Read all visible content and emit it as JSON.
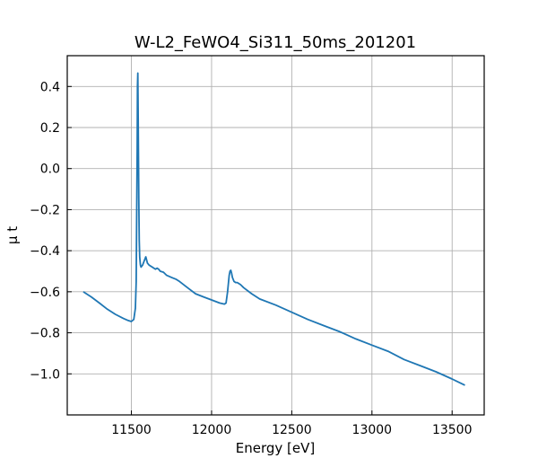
{
  "chart_data": {
    "type": "line",
    "title": "W-L2_FeWO4_Si311_50ms_201201",
    "xlabel": "Energy [eV]",
    "ylabel": "μ t",
    "xlim": [
      11100,
      13700
    ],
    "ylim": [
      -1.2,
      0.55
    ],
    "xticks": [
      11500,
      12000,
      12500,
      13000,
      13500
    ],
    "xtick_labels": [
      "11500",
      "12000",
      "12500",
      "13000",
      "13500"
    ],
    "yticks": [
      0.4,
      0.2,
      0.0,
      -0.2,
      -0.4,
      -0.6,
      -0.8,
      -1.0
    ],
    "ytick_labels": [
      "0.4",
      "0.2",
      "0.0",
      "−0.2",
      "−0.4",
      "−0.6",
      "−0.8",
      "−1.0"
    ],
    "grid": true,
    "line_color": "#1f77b4",
    "series": [
      {
        "x": [
          11200,
          11250,
          11300,
          11350,
          11400,
          11450,
          11480,
          11500,
          11515,
          11525,
          11530,
          11533,
          11536,
          11538,
          11540,
          11543,
          11546,
          11549,
          11552,
          11556,
          11560,
          11570,
          11580,
          11590,
          11600,
          11610,
          11620,
          11630,
          11640,
          11650,
          11660,
          11670,
          11680,
          11700,
          11720,
          11750,
          11780,
          11800,
          11850,
          11900,
          11950,
          12000,
          12050,
          12080,
          12090,
          12100,
          12110,
          12115,
          12120,
          12125,
          12130,
          12140,
          12150,
          12160,
          12180,
          12200,
          12250,
          12300,
          12400,
          12500,
          12600,
          12700,
          12800,
          12900,
          13000,
          13100,
          13200,
          13300,
          13400,
          13500,
          13580
        ],
        "y": [
          -0.6,
          -0.625,
          -0.655,
          -0.685,
          -0.71,
          -0.73,
          -0.74,
          -0.745,
          -0.735,
          -0.68,
          -0.55,
          -0.25,
          0.1,
          0.4,
          0.465,
          0.2,
          -0.15,
          -0.35,
          -0.43,
          -0.47,
          -0.48,
          -0.47,
          -0.45,
          -0.43,
          -0.46,
          -0.47,
          -0.475,
          -0.48,
          -0.485,
          -0.49,
          -0.485,
          -0.49,
          -0.5,
          -0.505,
          -0.52,
          -0.53,
          -0.54,
          -0.55,
          -0.58,
          -0.61,
          -0.625,
          -0.64,
          -0.655,
          -0.66,
          -0.655,
          -0.6,
          -0.52,
          -0.5,
          -0.495,
          -0.51,
          -0.53,
          -0.55,
          -0.555,
          -0.555,
          -0.565,
          -0.58,
          -0.61,
          -0.635,
          -0.665,
          -0.7,
          -0.735,
          -0.765,
          -0.795,
          -0.83,
          -0.86,
          -0.89,
          -0.93,
          -0.96,
          -0.99,
          -1.025,
          -1.055
        ]
      }
    ]
  }
}
